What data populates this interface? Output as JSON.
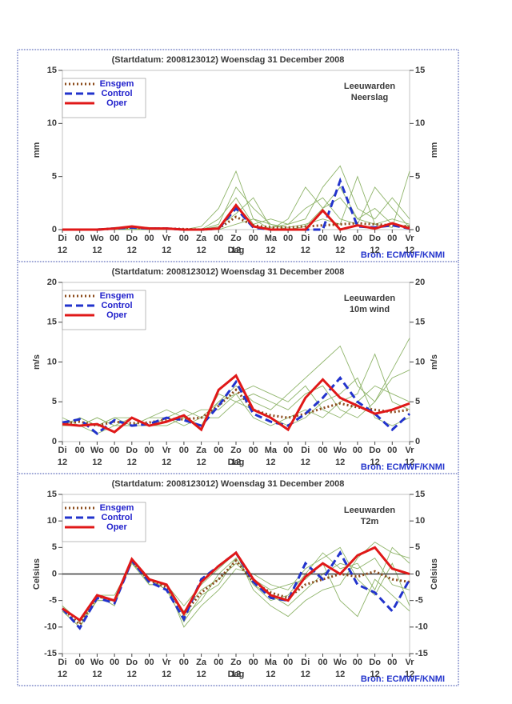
{
  "chart_data": [
    {
      "type": "line",
      "title": "(Startdatum: 2008123012)  Woensdag  31 December  2008",
      "location": "Leeuwarden",
      "variable": "Neerslag",
      "ylabel": "mm",
      "xlabel": "Dag",
      "source": "Bron: ECMWF/KNMI",
      "x": [
        0,
        12,
        24,
        36,
        48,
        60,
        72,
        84,
        96,
        108,
        120,
        132,
        144,
        156,
        168,
        180,
        192,
        204,
        216,
        228,
        240
      ],
      "xlim": [
        0,
        240
      ],
      "xticks": [
        {
          "value": 0,
          "label": "Di"
        },
        {
          "value": 12,
          "label": "00"
        },
        {
          "value": 24,
          "label": "Wo"
        },
        {
          "value": 36,
          "label": "00"
        },
        {
          "value": 48,
          "label": "Do"
        },
        {
          "value": 60,
          "label": "00"
        },
        {
          "value": 72,
          "label": "Vr"
        },
        {
          "value": 84,
          "label": "00"
        },
        {
          "value": 96,
          "label": "Za"
        },
        {
          "value": 108,
          "label": "00"
        },
        {
          "value": 120,
          "label": "Zo"
        },
        {
          "value": 132,
          "label": "00"
        },
        {
          "value": 144,
          "label": "Ma"
        },
        {
          "value": 156,
          "label": "00"
        },
        {
          "value": 168,
          "label": "Di"
        },
        {
          "value": 180,
          "label": "00"
        },
        {
          "value": 192,
          "label": "Wo"
        },
        {
          "value": 204,
          "label": "00"
        },
        {
          "value": 216,
          "label": "Do"
        },
        {
          "value": 228,
          "label": "00"
        },
        {
          "value": 240,
          "label": "Vr"
        }
      ],
      "sub_ticks": [
        {
          "value": 0,
          "label": "12"
        },
        {
          "value": 24,
          "label": "12"
        },
        {
          "value": 48,
          "label": "12"
        },
        {
          "value": 72,
          "label": "12"
        },
        {
          "value": 96,
          "label": "12"
        },
        {
          "value": 120,
          "label": "12"
        },
        {
          "value": 144,
          "label": "12"
        },
        {
          "value": 168,
          "label": "12"
        },
        {
          "value": 192,
          "label": "12"
        },
        {
          "value": 216,
          "label": "12"
        },
        {
          "value": 240,
          "label": "12"
        }
      ],
      "ylim": [
        0,
        15
      ],
      "yticks": [
        0,
        5,
        10,
        15
      ],
      "zero_line": false,
      "member_color": "#8fb46a",
      "members": [
        [
          0,
          0,
          0,
          0,
          0.1,
          0,
          0,
          0,
          0,
          0.5,
          4,
          2,
          0.5,
          0,
          0.3,
          2,
          4,
          1,
          2,
          0.5,
          0.3
        ],
        [
          0,
          0,
          0,
          0.1,
          0.2,
          0.1,
          0,
          0,
          0,
          1,
          3,
          0.5,
          1,
          0.5,
          1,
          4,
          6,
          2,
          1,
          3,
          1
        ],
        [
          0,
          0,
          0,
          0,
          0,
          0,
          0.1,
          0,
          0.3,
          2,
          5.5,
          1,
          0.5,
          0.2,
          0.5,
          1,
          0.5,
          5,
          0.5,
          1,
          0.5
        ],
        [
          0,
          0,
          0,
          0.2,
          0.3,
          0.2,
          0,
          0,
          0,
          0.3,
          1.5,
          3,
          0.2,
          0.5,
          2,
          3,
          1,
          0.5,
          4,
          2,
          0.2
        ],
        [
          0,
          0,
          0,
          0,
          0.1,
          0,
          0,
          0,
          0,
          0,
          0.5,
          1,
          0,
          1,
          4,
          2,
          3,
          1,
          0.5,
          0.2,
          5.5
        ]
      ],
      "series": [
        {
          "name": "Ensgem",
          "color": "#8b4a1a",
          "style": "dotted",
          "values": [
            0,
            0,
            0,
            0.1,
            0.2,
            0.1,
            0.1,
            0.05,
            0,
            0.1,
            1.2,
            0.4,
            0.2,
            0.2,
            0.3,
            0.4,
            0.5,
            0.6,
            0.5,
            0.4,
            0.3
          ]
        },
        {
          "name": "Control",
          "color": "#2233cc",
          "style": "dashed",
          "values": [
            0,
            0,
            0,
            0.1,
            0.2,
            0.1,
            0.1,
            0,
            0,
            0.1,
            2.0,
            0.2,
            0,
            0,
            0,
            0,
            4.6,
            0.3,
            0.2,
            0.4,
            0.1
          ]
        },
        {
          "name": "Oper",
          "color": "#e01818",
          "style": "solid",
          "values": [
            0,
            0,
            0,
            0.1,
            0.3,
            0.1,
            0.1,
            0,
            0,
            0.1,
            2.3,
            0.3,
            0,
            0,
            0,
            1.8,
            0,
            0.4,
            0.1,
            0.6,
            0.1
          ]
        }
      ]
    },
    {
      "type": "line",
      "title": "(Startdatum: 2008123012)  Woensdag  31 December  2008",
      "location": "Leeuwarden",
      "variable": "10m wind",
      "ylabel": "m/s",
      "xlabel": "Dag",
      "source": "Bron: ECMWF/KNMI",
      "x": [
        0,
        12,
        24,
        36,
        48,
        60,
        72,
        84,
        96,
        108,
        120,
        132,
        144,
        156,
        168,
        180,
        192,
        204,
        216,
        228,
        240
      ],
      "xlim": [
        0,
        240
      ],
      "xticks": [
        {
          "value": 0,
          "label": "Di"
        },
        {
          "value": 12,
          "label": "00"
        },
        {
          "value": 24,
          "label": "Wo"
        },
        {
          "value": 36,
          "label": "00"
        },
        {
          "value": 48,
          "label": "Do"
        },
        {
          "value": 60,
          "label": "00"
        },
        {
          "value": 72,
          "label": "Vr"
        },
        {
          "value": 84,
          "label": "00"
        },
        {
          "value": 96,
          "label": "Za"
        },
        {
          "value": 108,
          "label": "00"
        },
        {
          "value": 120,
          "label": "Zo"
        },
        {
          "value": 132,
          "label": "00"
        },
        {
          "value": 144,
          "label": "Ma"
        },
        {
          "value": 156,
          "label": "00"
        },
        {
          "value": 168,
          "label": "Di"
        },
        {
          "value": 180,
          "label": "00"
        },
        {
          "value": 192,
          "label": "Wo"
        },
        {
          "value": 204,
          "label": "00"
        },
        {
          "value": 216,
          "label": "Do"
        },
        {
          "value": 228,
          "label": "00"
        },
        {
          "value": 240,
          "label": "Vr"
        }
      ],
      "sub_ticks": [
        {
          "value": 0,
          "label": "12"
        },
        {
          "value": 24,
          "label": "12"
        },
        {
          "value": 48,
          "label": "12"
        },
        {
          "value": 72,
          "label": "12"
        },
        {
          "value": 96,
          "label": "12"
        },
        {
          "value": 120,
          "label": "12"
        },
        {
          "value": 144,
          "label": "12"
        },
        {
          "value": 168,
          "label": "12"
        },
        {
          "value": 192,
          "label": "12"
        },
        {
          "value": 216,
          "label": "12"
        },
        {
          "value": 240,
          "label": "12"
        }
      ],
      "ylim": [
        0,
        20
      ],
      "yticks": [
        0,
        5,
        10,
        15,
        20
      ],
      "zero_line": false,
      "member_color": "#8fb46a",
      "members": [
        [
          2,
          3,
          2,
          3,
          2,
          3,
          3,
          4,
          3,
          5,
          7,
          5,
          4,
          6,
          8,
          10,
          12,
          7,
          5,
          8,
          9
        ],
        [
          2,
          2,
          1,
          2,
          3,
          2,
          2,
          3,
          4,
          4,
          6,
          3,
          2,
          3,
          4,
          3,
          5,
          6,
          11,
          5,
          4
        ],
        [
          3,
          2,
          3,
          2,
          2,
          3,
          4,
          3,
          2,
          6,
          5,
          6,
          5,
          4,
          6,
          7,
          4,
          3,
          5,
          9,
          13
        ],
        [
          2,
          3,
          2,
          3,
          3,
          2,
          3,
          2,
          3,
          3,
          5,
          4,
          3,
          2,
          3,
          5,
          6,
          8,
          3,
          2,
          3
        ],
        [
          2,
          2,
          3,
          2,
          2,
          2,
          2,
          3,
          2,
          5,
          6,
          7,
          6,
          5,
          7,
          4,
          3,
          5,
          7,
          6,
          5
        ]
      ],
      "series": [
        {
          "name": "Ensgem",
          "color": "#8b4a1a",
          "style": "dotted",
          "values": [
            2.3,
            2.5,
            2.0,
            2.5,
            2.3,
            2.4,
            2.8,
            2.8,
            3.0,
            4.5,
            6.5,
            4.0,
            3.3,
            3.0,
            3.5,
            4.2,
            4.8,
            4.3,
            4.0,
            3.7,
            4.0
          ]
        },
        {
          "name": "Control",
          "color": "#2233cc",
          "style": "dashed",
          "values": [
            2.4,
            2.8,
            1.0,
            2.7,
            2.0,
            2.2,
            3.0,
            2.7,
            2.0,
            4.5,
            7.5,
            3.5,
            2.5,
            2.0,
            3.5,
            5.5,
            8.0,
            5.0,
            3.5,
            1.5,
            3.5
          ]
        },
        {
          "name": "Oper",
          "color": "#e01818",
          "style": "solid",
          "values": [
            2.2,
            2.0,
            2.2,
            1.2,
            3.0,
            2.0,
            2.5,
            3.3,
            1.5,
            6.5,
            8.3,
            4.0,
            3.0,
            1.5,
            5.5,
            7.8,
            5.5,
            4.5,
            3.5,
            4.0,
            4.8
          ]
        }
      ]
    },
    {
      "type": "line",
      "title": "(Startdatum: 2008123012)  Woensdag  31 December  2008",
      "location": "Leeuwarden",
      "variable": "T2m",
      "ylabel": "Celsius",
      "xlabel": "Dag",
      "source": "Bron: ECMWF/KNMI",
      "x": [
        0,
        12,
        24,
        36,
        48,
        60,
        72,
        84,
        96,
        108,
        120,
        132,
        144,
        156,
        168,
        180,
        192,
        204,
        216,
        228,
        240
      ],
      "xlim": [
        0,
        240
      ],
      "xticks": [
        {
          "value": 0,
          "label": "Di"
        },
        {
          "value": 12,
          "label": "00"
        },
        {
          "value": 24,
          "label": "Wo"
        },
        {
          "value": 36,
          "label": "00"
        },
        {
          "value": 48,
          "label": "Do"
        },
        {
          "value": 60,
          "label": "00"
        },
        {
          "value": 72,
          "label": "Vr"
        },
        {
          "value": 84,
          "label": "00"
        },
        {
          "value": 96,
          "label": "Za"
        },
        {
          "value": 108,
          "label": "00"
        },
        {
          "value": 120,
          "label": "Zo"
        },
        {
          "value": 132,
          "label": "00"
        },
        {
          "value": 144,
          "label": "Ma"
        },
        {
          "value": 156,
          "label": "00"
        },
        {
          "value": 168,
          "label": "Di"
        },
        {
          "value": 180,
          "label": "00"
        },
        {
          "value": 192,
          "label": "Wo"
        },
        {
          "value": 204,
          "label": "00"
        },
        {
          "value": 216,
          "label": "Do"
        },
        {
          "value": 228,
          "label": "00"
        },
        {
          "value": 240,
          "label": "Vr"
        }
      ],
      "sub_ticks": [
        {
          "value": 0,
          "label": "12"
        },
        {
          "value": 24,
          "label": "12"
        },
        {
          "value": 48,
          "label": "12"
        },
        {
          "value": 72,
          "label": "12"
        },
        {
          "value": 96,
          "label": "12"
        },
        {
          "value": 120,
          "label": "12"
        },
        {
          "value": 144,
          "label": "12"
        },
        {
          "value": 168,
          "label": "12"
        },
        {
          "value": 192,
          "label": "12"
        },
        {
          "value": 216,
          "label": "12"
        },
        {
          "value": 240,
          "label": "12"
        }
      ],
      "ylim": [
        -15,
        15
      ],
      "yticks": [
        -15,
        -10,
        -5,
        0,
        5,
        10,
        15
      ],
      "zero_line": true,
      "member_color": "#8fb46a",
      "members": [
        [
          -6,
          -9,
          -4,
          -5,
          2,
          -1,
          -3,
          -9,
          -4,
          -2,
          3,
          -2,
          -4,
          -6,
          -3,
          0,
          2,
          1,
          3,
          -2,
          -3
        ],
        [
          -7,
          -10,
          -5,
          -5,
          3,
          -2,
          -2,
          -10,
          -6,
          -3,
          1,
          0,
          -2,
          -3,
          1,
          3,
          5,
          -1,
          -4,
          2,
          -6
        ],
        [
          -6,
          -9,
          -4,
          -4,
          2,
          -1,
          -2,
          -6,
          -2,
          1,
          4,
          -3,
          -6,
          -8,
          -5,
          -3,
          -2,
          3,
          6,
          4,
          3
        ],
        [
          -7,
          -10,
          -4,
          -6,
          3,
          -1,
          -3,
          -7,
          -3,
          -1,
          2,
          -1,
          -3,
          -2,
          -1,
          2,
          -5,
          -8,
          -1,
          -4,
          -7
        ],
        [
          -6,
          -9,
          -5,
          -5,
          2,
          -2,
          -2,
          -8,
          -5,
          0,
          3,
          -2,
          -5,
          -4,
          0,
          4,
          1,
          2,
          -3,
          5,
          2
        ]
      ],
      "series": [
        {
          "name": "Ensgem",
          "color": "#8b4a1a",
          "style": "dotted",
          "values": [
            -6.5,
            -9.5,
            -4.2,
            -5.0,
            2.5,
            -1.2,
            -2.5,
            -7.5,
            -3.5,
            -1.0,
            2.5,
            -1.5,
            -3.5,
            -4.5,
            -2.0,
            -1.0,
            0.0,
            -0.5,
            0.5,
            -1.0,
            -1.5
          ]
        },
        {
          "name": "Control",
          "color": "#2233cc",
          "style": "dashed",
          "values": [
            -6.5,
            -10.2,
            -4.5,
            -5.5,
            2.5,
            -1.5,
            -3.0,
            -8.5,
            -1.0,
            1.5,
            4.0,
            -1.5,
            -4.5,
            -5.0,
            2.0,
            -1.0,
            4.0,
            -2.0,
            -3.5,
            -7.0,
            -1.0
          ]
        },
        {
          "name": "Oper",
          "color": "#e01818",
          "style": "solid",
          "values": [
            -6.5,
            -8.7,
            -4.0,
            -5.0,
            2.8,
            -1.0,
            -2.0,
            -7.5,
            -1.5,
            1.5,
            4.0,
            -1.0,
            -4.0,
            -5.0,
            -0.5,
            2.0,
            0.0,
            3.5,
            5.0,
            1.0,
            0.0
          ]
        }
      ]
    }
  ]
}
